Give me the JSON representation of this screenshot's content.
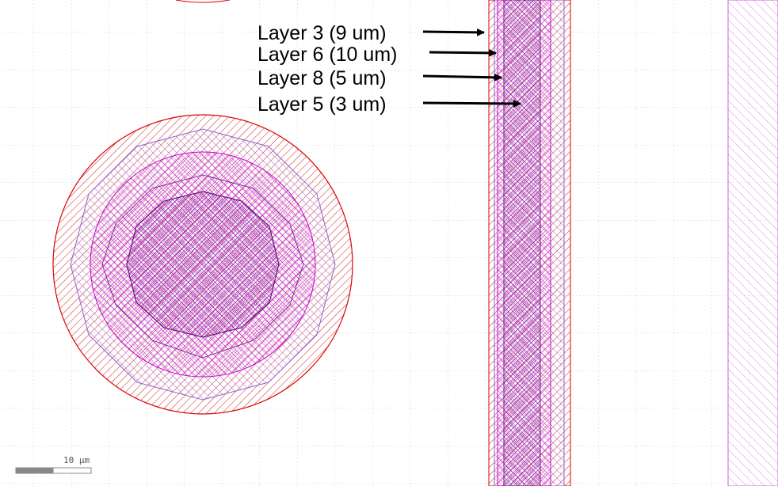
{
  "labels": [
    "Layer 3 (9 um)",
    "Layer 6 (10 um)",
    "Layer 8 (5 um)",
    "Layer 5 (3 um)"
  ],
  "scale_bar": {
    "label": "10 µm"
  },
  "colors": {
    "red_outline": "#dd0000",
    "violet": "#9a5fd0",
    "magenta": "#cc00cc",
    "purple": "#7a1a8a",
    "grid": "#c7c7c7",
    "arrow": "#000000",
    "background": "#ffffff"
  }
}
